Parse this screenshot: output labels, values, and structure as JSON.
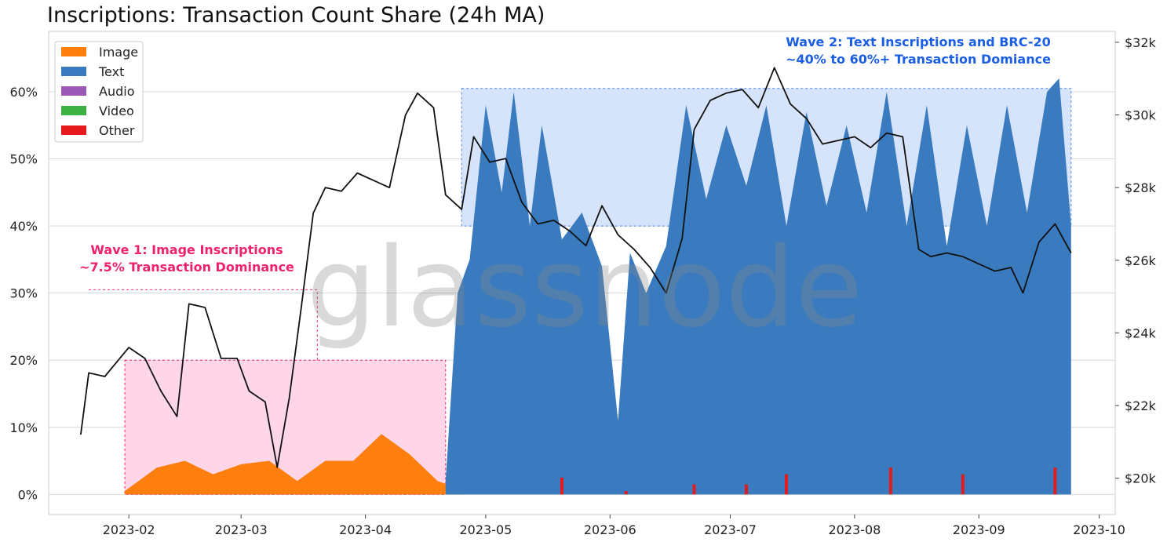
{
  "title": "Inscriptions: Transaction Count Share (24h MA)",
  "watermark": "glassnode",
  "legend": [
    {
      "name": "Image",
      "color": "#ff7f0e"
    },
    {
      "name": "Text",
      "color": "#3a7bbf"
    },
    {
      "name": "Audio",
      "color": "#9b59b6"
    },
    {
      "name": "Video",
      "color": "#3cb043"
    },
    {
      "name": "Other",
      "color": "#e41a1c"
    }
  ],
  "annotations": {
    "wave1": {
      "line1": "Wave 1: Image Inscriptions",
      "line2": "~7.5% Transaction Dominance",
      "color": "#f0226e"
    },
    "wave2": {
      "line1": "Wave 2: Text Inscriptions and BRC-20",
      "line2": "~40% to 60%+ Transaction Domiance",
      "color": "#1a5ee6"
    }
  },
  "chart_data": {
    "type": "area",
    "x_axis": {
      "ticks": [
        "2023-02",
        "2023-03",
        "2023-04",
        "2023-05",
        "2023-06",
        "2023-07",
        "2023-08",
        "2023-09",
        "2023-10"
      ],
      "range": [
        "2023-01-12",
        "2023-10-05"
      ]
    },
    "y_left": {
      "range": [
        -3,
        69
      ],
      "ticks": [
        "0%",
        "10%",
        "20%",
        "30%",
        "40%",
        "50%",
        "60%"
      ],
      "tick_values": [
        0,
        10,
        20,
        30,
        40,
        50,
        60
      ],
      "grid": true
    },
    "y_right": {
      "range": [
        19000,
        32300
      ],
      "ticks": [
        "$20k",
        "$22k",
        "$24k",
        "$26k",
        "$28k",
        "$30k",
        "$32k"
      ],
      "tick_values": [
        20000,
        22000,
        24000,
        26000,
        28000,
        30000,
        32000
      ]
    },
    "series": [
      {
        "name": "Image",
        "type": "stacked-area",
        "dates": [
          "2023-01-31",
          "2023-02-08",
          "2023-02-15",
          "2023-02-22",
          "2023-03-01",
          "2023-03-08",
          "2023-03-15",
          "2023-03-22",
          "2023-03-29",
          "2023-04-05",
          "2023-04-12",
          "2023-04-19",
          "2023-04-26"
        ],
        "values": [
          0.5,
          4,
          5,
          3,
          4.5,
          5,
          2,
          5,
          5,
          9,
          6,
          2,
          0.5
        ]
      },
      {
        "name": "Text",
        "type": "stacked-area",
        "dates": [
          "2023-04-21",
          "2023-04-24",
          "2023-04-27",
          "2023-05-01",
          "2023-05-05",
          "2023-05-08",
          "2023-05-12",
          "2023-05-15",
          "2023-05-20",
          "2023-05-25",
          "2023-05-30",
          "2023-06-03",
          "2023-06-06",
          "2023-06-10",
          "2023-06-15",
          "2023-06-20",
          "2023-06-25",
          "2023-06-30",
          "2023-07-05",
          "2023-07-10",
          "2023-07-15",
          "2023-07-20",
          "2023-07-25",
          "2023-07-30",
          "2023-08-04",
          "2023-08-09",
          "2023-08-14",
          "2023-08-19",
          "2023-08-24",
          "2023-08-29",
          "2023-09-03",
          "2023-09-08",
          "2023-09-13",
          "2023-09-18",
          "2023-09-21",
          "2023-09-24"
        ],
        "values": [
          2,
          30,
          35,
          58,
          45,
          60,
          40,
          55,
          38,
          42,
          34,
          11,
          36,
          30,
          37,
          58,
          44,
          55,
          46,
          58,
          40,
          57,
          43,
          55,
          42,
          60,
          40,
          58,
          37,
          55,
          40,
          58,
          42,
          60,
          62,
          40
        ]
      },
      {
        "name": "Audio",
        "type": "stacked-area",
        "values": []
      },
      {
        "name": "Video",
        "type": "stacked-area",
        "values": []
      },
      {
        "name": "Other",
        "type": "stacked-area",
        "dates": [
          "2023-05-20",
          "2023-06-05",
          "2023-06-22",
          "2023-07-05",
          "2023-07-15",
          "2023-08-10",
          "2023-08-28",
          "2023-09-20"
        ],
        "values": [
          2.5,
          0.5,
          1.5,
          1.5,
          3,
          4,
          3,
          4
        ]
      },
      {
        "name": "",
        "axis": "right",
        "type": "line",
        "color": "#111111",
        "dates": [
          "2023-01-20",
          "2023-01-22",
          "2023-01-26",
          "2023-01-29",
          "2023-02-01",
          "2023-02-05",
          "2023-02-09",
          "2023-02-13",
          "2023-02-16",
          "2023-02-20",
          "2023-02-24",
          "2023-02-28",
          "2023-03-03",
          "2023-03-07",
          "2023-03-10",
          "2023-03-13",
          "2023-03-16",
          "2023-03-19",
          "2023-03-22",
          "2023-03-26",
          "2023-03-30",
          "2023-04-03",
          "2023-04-07",
          "2023-04-11",
          "2023-04-14",
          "2023-04-18",
          "2023-04-21",
          "2023-04-25",
          "2023-04-28",
          "2023-05-02",
          "2023-05-06",
          "2023-05-10",
          "2023-05-14",
          "2023-05-18",
          "2023-05-22",
          "2023-05-26",
          "2023-05-30",
          "2023-06-03",
          "2023-06-07",
          "2023-06-11",
          "2023-06-15",
          "2023-06-19",
          "2023-06-22",
          "2023-06-26",
          "2023-06-30",
          "2023-07-04",
          "2023-07-08",
          "2023-07-12",
          "2023-07-16",
          "2023-07-20",
          "2023-07-24",
          "2023-07-28",
          "2023-08-01",
          "2023-08-05",
          "2023-08-09",
          "2023-08-13",
          "2023-08-17",
          "2023-08-20",
          "2023-08-24",
          "2023-08-28",
          "2023-09-01",
          "2023-09-05",
          "2023-09-09",
          "2023-09-12",
          "2023-09-16",
          "2023-09-20",
          "2023-09-24"
        ],
        "values": [
          21200,
          22900,
          22800,
          23200,
          23600,
          23300,
          22400,
          21700,
          24800,
          24700,
          23300,
          23300,
          22400,
          22100,
          20300,
          22200,
          24700,
          27300,
          28000,
          27900,
          28400,
          28200,
          28000,
          30000,
          30600,
          30200,
          27800,
          27400,
          29400,
          28700,
          28800,
          27600,
          27000,
          27100,
          26800,
          26400,
          27500,
          26700,
          26300,
          25800,
          25100,
          26600,
          29600,
          30400,
          30600,
          30700,
          30200,
          31300,
          30300,
          29900,
          29200,
          29300,
          29400,
          29100,
          29500,
          29400,
          26300,
          26100,
          26200,
          26100,
          25900,
          25700,
          25800,
          25100,
          26500,
          27000,
          26200
        ]
      }
    ]
  }
}
